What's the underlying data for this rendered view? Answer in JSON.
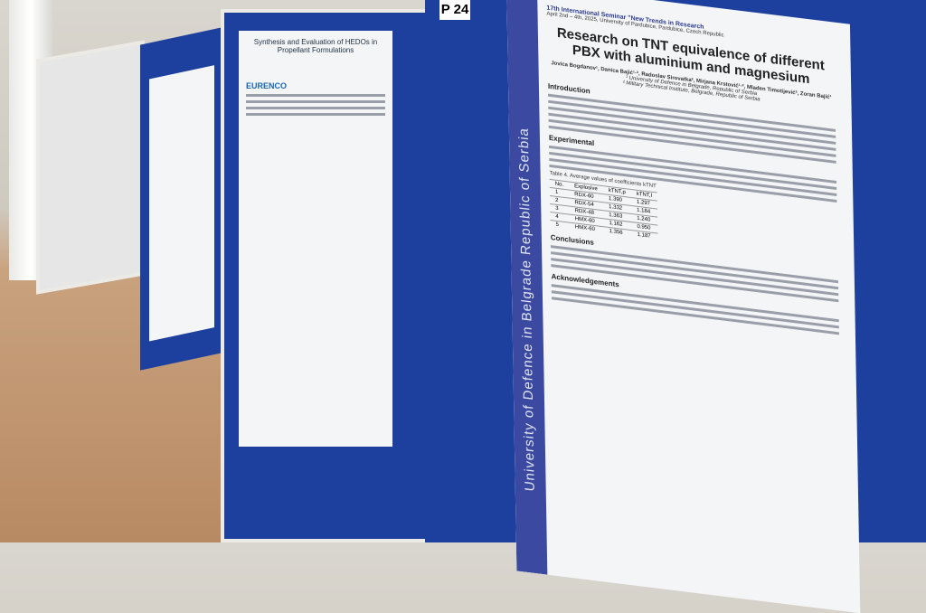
{
  "board_label": "P 24",
  "poster": {
    "header": "17th International Seminar \"New Trends in Research",
    "dates": "April 2nd – 4th, 2025, University of Pardubice, Pardubice, Czech Republic",
    "title": "Research on TNT equivalence of different PBX with aluminium and magnesium",
    "authors": "Jovica Bogdanov¹, Danica Bajić¹·², Radoslav Sirovatka², Mirjana Krstović¹·², Mladen Timotijević², Zoran Bajić¹",
    "affiliations": [
      "¹ University of Defence in Belgrade, Republic of Serbia",
      "² Military Technical Institute, Belgrade, Republic of Serbia"
    ],
    "side_text": "University of Defence in Belgrade Republic of Serbia",
    "sections": [
      "Introduction",
      "Experimental",
      "Conclusions",
      "Acknowledgements"
    ],
    "table": {
      "caption": "Table 4. Average values of coefficients kTNT",
      "header": [
        "No.",
        "Explosive",
        "kTNT,p",
        "kTNT,I"
      ],
      "rows": [
        [
          "1",
          "RDX-60",
          "1.390",
          "1.297"
        ],
        [
          "2",
          "RDX-54",
          "1.332",
          "1.184"
        ],
        [
          "3",
          "RDX-48",
          "1.363",
          "1.240"
        ],
        [
          "4",
          "HMX-60",
          "1.162",
          "0.950"
        ],
        [
          "5",
          "HMX-60",
          "1.356",
          "1.187"
        ]
      ]
    }
  },
  "left_poster": {
    "title": "Synthesis and Evaluation of HEDOs in Propellant Formulations",
    "logo": "EURENCO"
  }
}
